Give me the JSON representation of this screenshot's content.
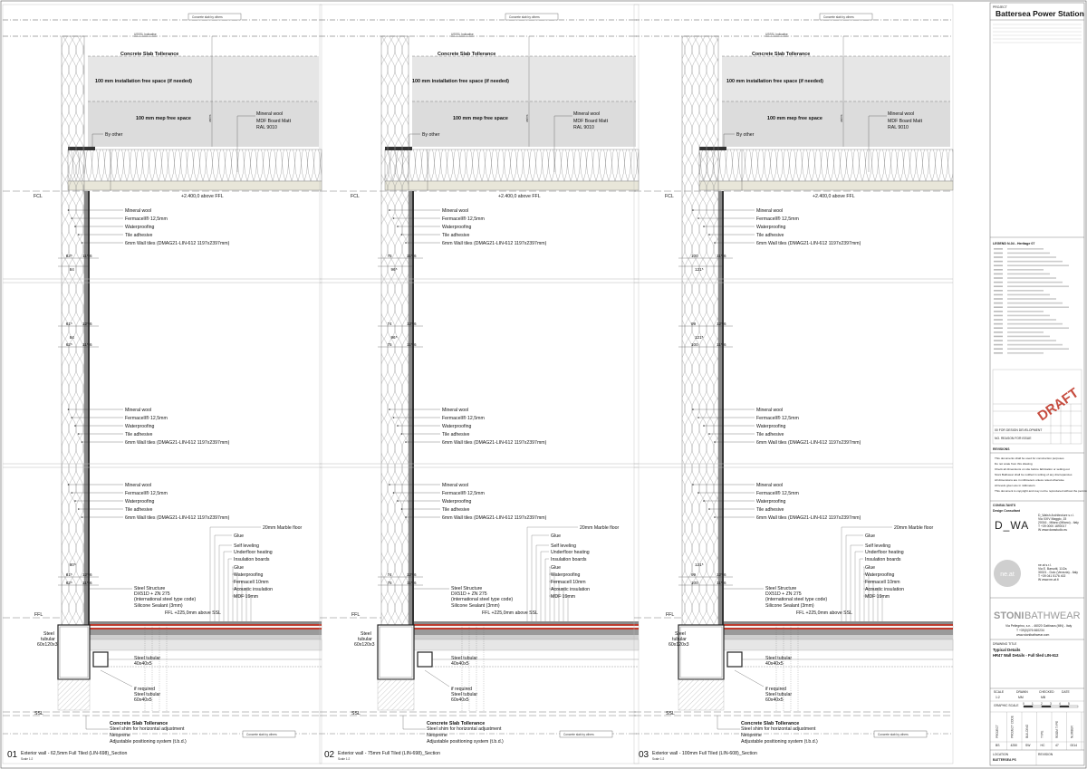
{
  "sheet_labels": {
    "concrete_slab_by_others": "Concrete slab by others",
    "usssl_indicative": "USSSL Indicative",
    "concrete_slab_tollerance": "Concrete Slab Tollerance",
    "install_free_space": "100 mm installation free space (if needed)",
    "mep_free_space": "100 mm mep free space",
    "varies": "varies",
    "mineral_wool": "Mineral wool",
    "mdf_board": "MDF Board Matt",
    "ral": "RAL 9010",
    "by_other": "By other",
    "fcl": "FCL",
    "above_ffl": "+2.400,0 above FFL",
    "fermacell": "Fermacell® 12,5mm",
    "waterproofing": "Waterproofing",
    "tile_adhesive": "Tile adhesive",
    "wall_tiles": "6mm Wall tiles (DMAG21-LIN-612 1197x2397mm)",
    "marble_floor": "20mm Marble floor",
    "glue": "Glue",
    "self_leveling": "Self leveling",
    "underfloor_heating": "Underfloor heating",
    "insulation_boards": "Insulation boards",
    "fermacell_10": "Fermacell 10mm",
    "acoustic_insulation": "Acoustic insulation",
    "mdf_19": "MDF 19mm",
    "steel_structure": "Steel Structure",
    "dx51d": "DX51D + ZN 275",
    "steel_code": "(international steel type code)",
    "silicone": "Silicone Sealant (3mm)",
    "ffl_above_ssl": "FFL +225,0mm above SSL",
    "ffl": "FFL",
    "steel_tubular": "Steel",
    "tubular": "tubular",
    "tubular_size": "60x120x3",
    "steel_tubular_40": "Steel tubular",
    "size_40": "40x40x5",
    "if_required": "if required",
    "steel_tubular_60": "Steel tubular",
    "size_60": "60x40x5",
    "ssl": "SSL",
    "steel_shim": "Steel shim for horizontal adjustment",
    "neoprene": "Neoprene",
    "adjustable": "Adjustable positioning system (t.b.d.)",
    "scale": "Scale 1:2"
  },
  "details": [
    {
      "number": "01",
      "title": "Exterior wall - 62,5mm Full Tiled (LIN-698)_Section",
      "dims_top": [
        "62⁵",
        "11⁵",
        "6"
      ],
      "dim_total": "84",
      "dims_mid1": [
        "61⁵",
        "12⁵",
        "6"
      ],
      "dim_mid_total": "84",
      "dims_mid2": [
        "62⁵",
        "11⁵",
        "6"
      ],
      "dim_bot_top": "80⁵",
      "dims_bot1": [
        "61⁵",
        "12⁵",
        "6"
      ],
      "dims_bot2": [
        "62⁵",
        "11⁵",
        "6"
      ]
    },
    {
      "number": "02",
      "title": "Exterior wall - 75mm Full Tiled (LIN-698)_Section",
      "dims_top": [
        "75",
        "11⁵",
        "6"
      ],
      "dim_total": "96⁵",
      "dims_mid1": [
        "74",
        "12⁵",
        "6"
      ],
      "dim_mid_total": "96⁵",
      "dims_mid2": [
        "75",
        "11⁵",
        "6"
      ],
      "dim_bot_top": "",
      "dims_bot1": [
        "74",
        "12⁵",
        "6"
      ],
      "dims_bot2": [
        "75",
        "11⁵",
        "6"
      ]
    },
    {
      "number": "03",
      "title": "Exterior wall - 100mm Full Tiled (LIN-608)_Section",
      "dims_top": [
        "100",
        "11⁵",
        "6"
      ],
      "dim_total": "121⁵",
      "dims_mid1": [
        "99",
        "12⁵",
        "6"
      ],
      "dim_mid_total": "121⁵",
      "dims_mid2": [
        "100",
        "11⁵",
        "6"
      ],
      "dim_bot_top": "121⁵",
      "dims_bot1": [
        "99",
        "12⁵",
        "6"
      ],
      "dims_bot2": [
        "100",
        "11⁵",
        "6"
      ]
    }
  ],
  "title_block": {
    "project_label": "PROJECT",
    "project": "Battersea Power Station",
    "legend_title": "LEGEND N-04 - Heritage 07",
    "draft": "DRAFT",
    "rev_row": "00    FOR DESIGN DEVELOPMENT",
    "rev_header": "NO.   REASON FOR ISSUE",
    "revisions_label": "REVISIONS",
    "notes": [
      "This documents shall be used for construction purposes",
      "Do not scale from this drawing",
      "Check all dimensions on site before fabrication or setting out",
      "Stoni Bathwear shall be notified in writing of any discrepancies",
      "All dimensions are in millimeters unless noted otherwise",
      "All levels given are in millimeters",
      "This document is copyright and may not be reproduced without the permission of the owner."
    ],
    "consultants_label": "CONSULTANTS",
    "design_consultant": "Design Consultant",
    "dwa_logo": "D_WA",
    "dwa_name": "D_Walsh Architecture s.r.l.",
    "dwa_addr": "Via XXIV Maggio, 15",
    "dwa_city": "20016 - Milano (Milano) - Italy",
    "dwa_tel": "T +39 0000 1890017",
    "dwa_web": "W www.dwastudio.eu",
    "neat_logo": "ne.at",
    "neat_name": "ne.at s.r.l.",
    "neat_addr": "Via E. Barsotti, 11/2a",
    "neat_city": "30021 - Dolo (Venezia) - Italy",
    "neat_tel": "T +39 041 5176 402",
    "neat_web": "W www.ne-at.it",
    "stoni_brand_a": "STONI",
    "stoni_brand_b": "BATHWEAR",
    "stoni_addr": "Via Pellegrino, s.n. - 46020 Gattinara (MN) - Italy",
    "stoni_tel": "T +39(0)376 660234",
    "stoni_web": "www.stonibathwear.com",
    "drawing_title_label": "DRAWING TITLE",
    "drawing_title_1": "Typical Details",
    "drawing_title_2": "HR47 Wall Details - Full tiled LIN-612",
    "scale_label": "SCALE",
    "scale_value": "1:2",
    "drawn_label": "DRAWN",
    "drawn_value": "MM",
    "checked_label": "CHECKED",
    "checked_value": "MB",
    "date_label": "DATE",
    "graphic_scale_label": "GRAPHIC SCALE",
    "graphic_scale_ticks": [
      "0",
      "1",
      "2",
      "3",
      "4",
      "5"
    ],
    "code_headers": [
      "PROJECT",
      "PROJECT CODE",
      "BUILDING",
      "TYPE",
      "ROOM TYPE",
      "NUMBER"
    ],
    "code_values": [
      "BS",
      "4250",
      "SW",
      "HC",
      "47",
      "0014"
    ],
    "location_label": "LOCATION",
    "location_value": "BATTERSEA PS",
    "revision_label": "REVISION"
  }
}
